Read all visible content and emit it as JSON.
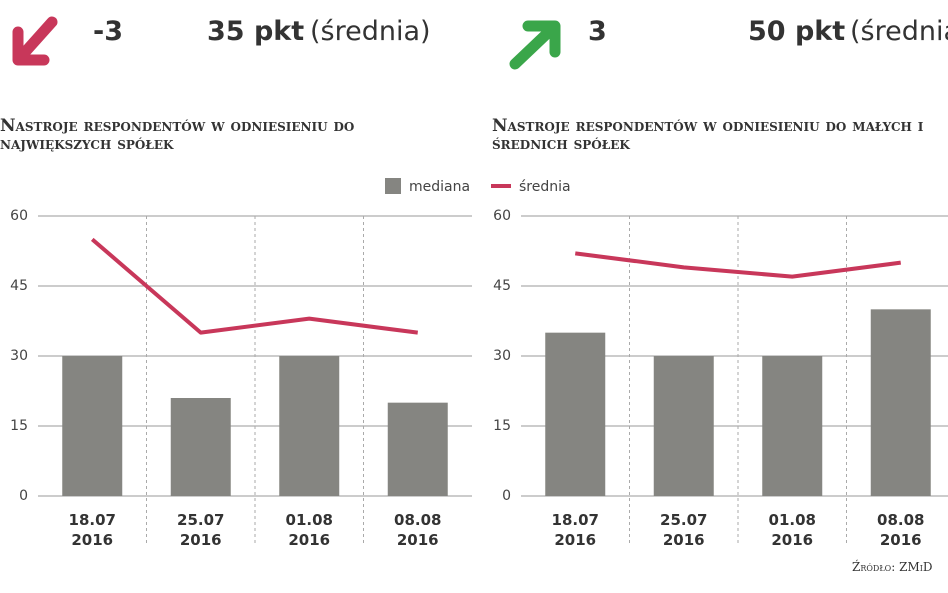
{
  "header": {
    "left": {
      "change": "-3",
      "value": "35 pkt",
      "note": "(średnia)"
    },
    "right": {
      "change": "3",
      "value": "50 pkt",
      "note": "(średnia)"
    }
  },
  "chart_data": [
    {
      "type": "bar-line",
      "title": "Nastroje respondentów w odniesieniu do największych spółek",
      "categories": [
        "18.07\n2016",
        "25.07\n2016",
        "01.08\n2016",
        "08.08\n2016"
      ],
      "series": [
        {
          "name": "mediana",
          "color": "#858581",
          "kind": "bar",
          "values": [
            30,
            21,
            30,
            20
          ]
        },
        {
          "name": "średnia",
          "color": "#c8375a",
          "kind": "line",
          "values": [
            55,
            35,
            38,
            35
          ]
        }
      ],
      "ylim": [
        0,
        60
      ],
      "yticks": [
        0,
        15,
        30,
        45,
        60
      ],
      "grid": true
    },
    {
      "type": "bar-line",
      "title": "Nastroje respondentów w odniesieniu do małych i średnich spółek",
      "categories": [
        "18.07\n2016",
        "25.07\n2016",
        "01.08\n2016",
        "08.08\n2016"
      ],
      "series": [
        {
          "color": "#858581",
          "kind": "bar",
          "values": [
            35,
            30,
            30,
            40
          ]
        },
        {
          "color": "#c8375a",
          "kind": "line",
          "values": [
            52,
            49,
            47,
            50
          ]
        }
      ],
      "ylim": [
        0,
        60
      ],
      "yticks": [
        0,
        15,
        30,
        45,
        60
      ],
      "grid": true
    }
  ],
  "source": "Źródło: ZMiD"
}
